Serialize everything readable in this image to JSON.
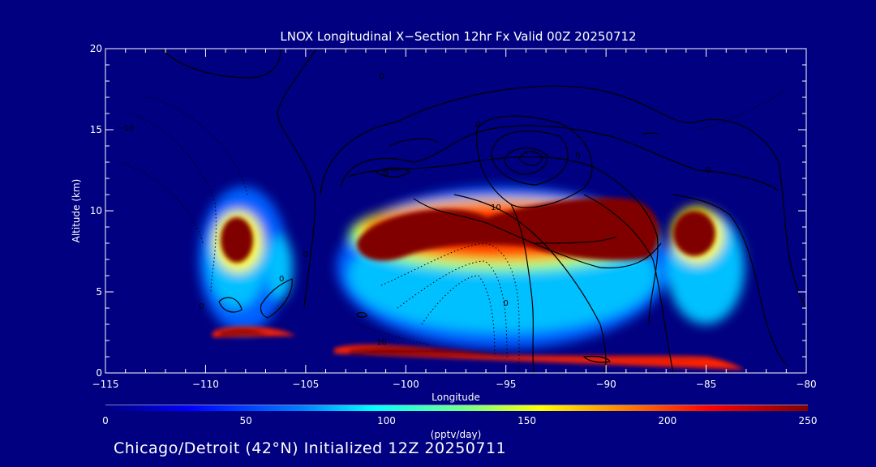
{
  "chart_data": {
    "type": "heatmap",
    "title": "LNOX Longitudinal X−Section 12hr  Fx Valid 00Z 20250712",
    "xlabel": "Longitude",
    "ylabel": "Altitude (km)",
    "xlim": [
      -115,
      -80
    ],
    "ylim": [
      0,
      20
    ],
    "xticks": [
      -115,
      -110,
      -105,
      -100,
      -95,
      -90,
      -85,
      -80
    ],
    "xtick_labels": [
      "−115",
      "−110",
      "−105",
      "−100",
      "−95",
      "−90",
      "−85",
      "−80"
    ],
    "yticks": [
      0,
      5,
      10,
      15,
      20
    ],
    "ytick_labels": [
      "0",
      "5",
      "10",
      "15",
      "20"
    ],
    "colorbar": {
      "label": "(pptv/day)",
      "range": [
        0,
        250
      ],
      "ticks": [
        0,
        50,
        100,
        150,
        200,
        250
      ],
      "tick_labels": [
        "0",
        "50",
        "100",
        "150",
        "200",
        "250"
      ]
    },
    "contour_labels": [
      {
        "text": "0",
        "lon": -110.2,
        "alt": 4.1
      },
      {
        "text": "0",
        "lon": -105.0,
        "alt": 7.3
      },
      {
        "text": "0",
        "lon": -106.2,
        "alt": 5.8
      },
      {
        "text": "0",
        "lon": -95.0,
        "alt": 4.3
      },
      {
        "text": "0",
        "lon": -96.4,
        "alt": 15.3
      },
      {
        "text": "0",
        "lon": -101.2,
        "alt": 18.3
      },
      {
        "text": "0",
        "lon": -84.9,
        "alt": 12.5
      },
      {
        "text": "0",
        "lon": -101.0,
        "alt": 12.3
      },
      {
        "text": "0",
        "lon": -91.4,
        "alt": 13.4
      },
      {
        "text": "10",
        "lon": -95.5,
        "alt": 10.2
      },
      {
        "text": "10",
        "lon": -101.2,
        "alt": 1.9
      },
      {
        "text": "−10",
        "lon": -114.0,
        "alt": 15.1
      }
    ]
  },
  "footer": "Chicago/Detroit (42°N) Initialized 12Z 20250711"
}
